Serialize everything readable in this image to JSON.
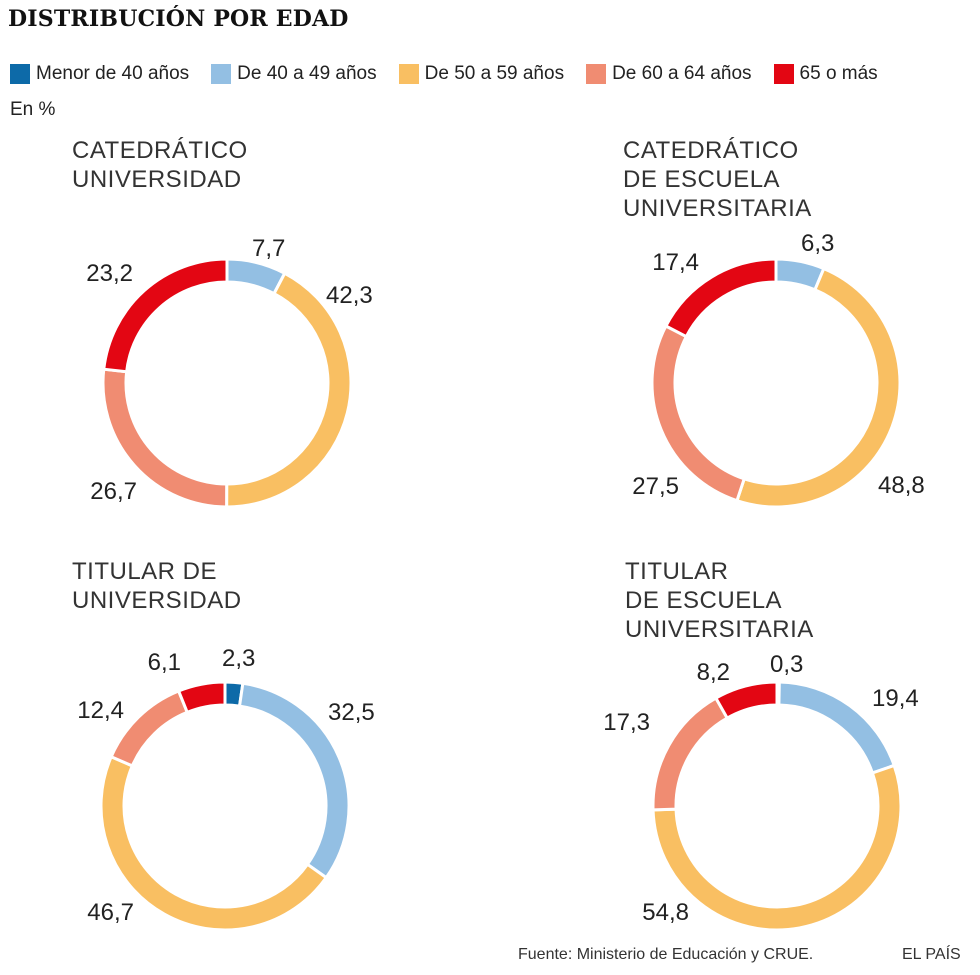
{
  "title": "DISTRIBUCIÓN POR EDAD",
  "unit": "En %",
  "legend": [
    {
      "label": "Menor de 40 años",
      "color": "#0d6aa8"
    },
    {
      "label": "De 40 a 49 años",
      "color": "#93bfe3"
    },
    {
      "label": "De 50 a 59 años",
      "color": "#f9bf62"
    },
    {
      "label": "De 60 a 64 años",
      "color": "#f08c72"
    },
    {
      "label": "65 o más",
      "color": "#e30613"
    }
  ],
  "charts_titles": [
    "CATEDRÁTICO\nUNIVERSIDAD",
    "CATEDRÁTICO\nDE ESCUELA\nUNIVERSITARIA",
    "TITULAR DE\nUNIVERSIDAD",
    "TITULAR\nDE ESCUELA\nUNIVERSITARIA"
  ],
  "footer": {
    "source": "Fuente: Ministerio de Educación y CRUE.",
    "brand": "EL PAÍS"
  },
  "chart_data": [
    {
      "type": "pie",
      "subtype": "donut",
      "title": "CATEDRÁTICO UNIVERSIDAD",
      "categories": [
        "De 40 a 49 años",
        "De 50 a 59 años",
        "De 60 a 64 años",
        "65 o más"
      ],
      "values": [
        7.7,
        42.3,
        26.7,
        23.2
      ],
      "labels": [
        "7,7",
        "42,3",
        "26,7",
        "23,2"
      ],
      "colors": [
        "#93bfe3",
        "#f9bf62",
        "#f08c72",
        "#e30613"
      ]
    },
    {
      "type": "pie",
      "subtype": "donut",
      "title": "CATEDRÁTICO DE ESCUELA UNIVERSITARIA",
      "categories": [
        "De 40 a 49 años",
        "De 50 a 59 años",
        "De 60 a 64 años",
        "65 o más"
      ],
      "values": [
        6.3,
        48.8,
        27.5,
        17.4
      ],
      "labels": [
        "6,3",
        "48,8",
        "27,5",
        "17,4"
      ],
      "colors": [
        "#93bfe3",
        "#f9bf62",
        "#f08c72",
        "#e30613"
      ]
    },
    {
      "type": "pie",
      "subtype": "donut",
      "title": "TITULAR DE UNIVERSIDAD",
      "categories": [
        "Menor de 40 años",
        "De 40 a 49 años",
        "De 50 a 59 años",
        "De 60 a 64 años",
        "65 o más"
      ],
      "values": [
        2.3,
        32.5,
        46.7,
        12.4,
        6.1
      ],
      "labels": [
        "2,3",
        "32,5",
        "46,7",
        "12,4",
        "6,1"
      ],
      "colors": [
        "#0d6aa8",
        "#93bfe3",
        "#f9bf62",
        "#f08c72",
        "#e30613"
      ]
    },
    {
      "type": "pie",
      "subtype": "donut",
      "title": "TITULAR DE ESCUELA UNIVERSITARIA",
      "categories": [
        "Menor de 40 años",
        "De 40 a 49 años",
        "De 50 a 59 años",
        "De 60 a 64 años",
        "65 o más"
      ],
      "values": [
        0.3,
        19.4,
        54.8,
        17.3,
        8.2
      ],
      "labels": [
        "0,3",
        "19,4",
        "54,8",
        "17,3",
        "8,2"
      ],
      "colors": [
        "#0d6aa8",
        "#93bfe3",
        "#f9bf62",
        "#f08c72",
        "#e30613"
      ]
    }
  ]
}
